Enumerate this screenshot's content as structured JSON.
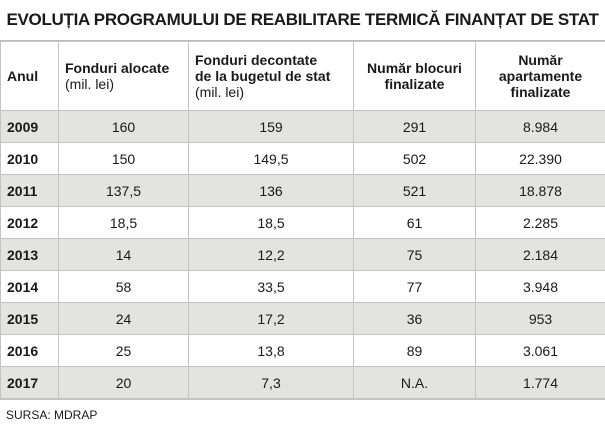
{
  "title": "EVOLUȚIA PROGRAMULUI DE REABILITARE TERMICĂ FINANȚAT DE STAT",
  "headers": {
    "year": "Anul",
    "funds_line1": "Fonduri alocate",
    "funds_line2": "(mil. lei)",
    "settled_line1": "Fonduri decontate",
    "settled_line2": "de la bugetul de stat",
    "settled_line3": "(mil. lei)",
    "blocks_line1": "Număr blocuri",
    "blocks_line2": "finalizate",
    "apts_line1": "Număr",
    "apts_line2": "apartamente",
    "apts_line3": "finalizate"
  },
  "rows": [
    {
      "year": "2009",
      "funds": "160",
      "settled": "159",
      "blocks": "291",
      "apartments": "8.984"
    },
    {
      "year": "2010",
      "funds": "150",
      "settled": "149,5",
      "blocks": "502",
      "apartments": "22.390"
    },
    {
      "year": "2011",
      "funds": "137,5",
      "settled": "136",
      "blocks": "521",
      "apartments": "18.878"
    },
    {
      "year": "2012",
      "funds": "18,5",
      "settled": "18,5",
      "blocks": "61",
      "apartments": "2.285"
    },
    {
      "year": "2013",
      "funds": "14",
      "settled": "12,2",
      "blocks": "75",
      "apartments": "2.184"
    },
    {
      "year": "2014",
      "funds": "58",
      "settled": "33,5",
      "blocks": "77",
      "apartments": "3.948"
    },
    {
      "year": "2015",
      "funds": "24",
      "settled": "17,2",
      "blocks": "36",
      "apartments": "953"
    },
    {
      "year": "2016",
      "funds": "25",
      "settled": "13,8",
      "blocks": "89",
      "apartments": "3.061"
    },
    {
      "year": "2017",
      "funds": "20",
      "settled": "7,3",
      "blocks": "N.A.",
      "apartments": "1.774"
    }
  ],
  "source": "SURSA: MDRAP",
  "colors": {
    "shaded_row": "#e3e3df",
    "border": "#c4c4c4"
  }
}
